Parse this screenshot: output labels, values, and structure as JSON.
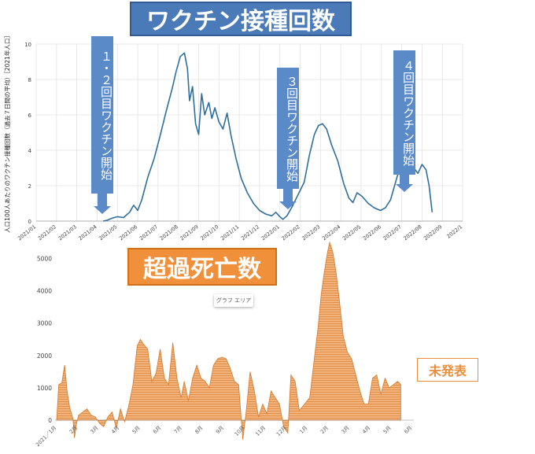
{
  "titles": {
    "vaccination": "ワクチン接種回数",
    "excess_deaths": "超過死亡数"
  },
  "callouts": {
    "dose12": "１・２回目ワクチン開始",
    "dose3": "３回目ワクチン開始",
    "dose4": "４回目ワクチン開始"
  },
  "not_published": "未発表",
  "chart_area_tag": "グラフ エリア",
  "colors": {
    "vaccine_line": "#2e6f9e",
    "excess_fill": "#f3b27a",
    "excess_stroke": "#d37a2e",
    "arrow": "#5b8ac8",
    "title_blue": "#4a7ab8",
    "title_orange": "#f0903a"
  },
  "chart_data": [
    {
      "type": "line",
      "ylabel": "人口100人あたりのワクチン接種回数（過去７日間の平均）［2021年人口］",
      "ylim": [
        0,
        10
      ],
      "yticks": [
        "0",
        "2",
        "4",
        "6",
        "8",
        "10"
      ],
      "xticks": [
        "2021/01",
        "2021/02",
        "2021/03",
        "2021/04",
        "2021/05",
        "2021/06",
        "2021/07",
        "2021/08",
        "2021/09",
        "2021/10",
        "2021/11",
        "2021/12",
        "2022/01",
        "2022/02",
        "2022/03",
        "2022/04",
        "2022/05",
        "2022/06",
        "2022/07",
        "2022/08",
        "2022/09",
        "2022/1"
      ],
      "grid": true,
      "series": [
        {
          "values": [
            [
              3.3,
              0
            ],
            [
              3.5,
              0.05
            ],
            [
              3.7,
              0.15
            ],
            [
              4.0,
              0.25
            ],
            [
              4.3,
              0.2
            ],
            [
              4.6,
              0.5
            ],
            [
              4.8,
              0.9
            ],
            [
              5.0,
              0.6
            ],
            [
              5.2,
              1.2
            ],
            [
              5.5,
              2.5
            ],
            [
              5.8,
              3.5
            ],
            [
              6.1,
              4.8
            ],
            [
              6.4,
              6.2
            ],
            [
              6.7,
              7.5
            ],
            [
              6.9,
              8.5
            ],
            [
              7.1,
              9.3
            ],
            [
              7.3,
              9.5
            ],
            [
              7.45,
              8.6
            ],
            [
              7.55,
              6.8
            ],
            [
              7.7,
              7.6
            ],
            [
              7.85,
              5.5
            ],
            [
              8.0,
              4.9
            ],
            [
              8.15,
              7.2
            ],
            [
              8.3,
              6.0
            ],
            [
              8.5,
              6.7
            ],
            [
              8.65,
              5.8
            ],
            [
              8.8,
              6.4
            ],
            [
              9.0,
              5.6
            ],
            [
              9.2,
              5.2
            ],
            [
              9.4,
              6.1
            ],
            [
              9.6,
              4.8
            ],
            [
              9.85,
              3.5
            ],
            [
              10.1,
              2.4
            ],
            [
              10.4,
              1.6
            ],
            [
              10.7,
              1.0
            ],
            [
              11.0,
              0.6
            ],
            [
              11.3,
              0.4
            ],
            [
              11.6,
              0.3
            ],
            [
              11.8,
              0.5
            ],
            [
              12.0,
              0.25
            ],
            [
              12.15,
              0.1
            ],
            [
              12.35,
              0.3
            ],
            [
              12.6,
              0.8
            ],
            [
              12.9,
              1.5
            ],
            [
              13.2,
              2.2
            ],
            [
              13.45,
              3.7
            ],
            [
              13.7,
              4.9
            ],
            [
              13.9,
              5.4
            ],
            [
              14.1,
              5.5
            ],
            [
              14.3,
              5.2
            ],
            [
              14.55,
              4.3
            ],
            [
              14.85,
              3.4
            ],
            [
              15.15,
              2.1
            ],
            [
              15.4,
              1.3
            ],
            [
              15.6,
              1.05
            ],
            [
              15.8,
              1.6
            ],
            [
              16.05,
              1.4
            ],
            [
              16.35,
              1.0
            ],
            [
              16.65,
              0.75
            ],
            [
              16.95,
              0.6
            ],
            [
              17.2,
              0.75
            ],
            [
              17.45,
              1.2
            ],
            [
              17.7,
              2.2
            ],
            [
              17.9,
              3.0
            ],
            [
              18.1,
              3.5
            ],
            [
              18.3,
              3.75
            ],
            [
              18.5,
              3.7
            ],
            [
              18.6,
              3.0
            ],
            [
              18.8,
              2.7
            ],
            [
              19.0,
              3.2
            ],
            [
              19.2,
              2.9
            ],
            [
              19.35,
              2.0
            ],
            [
              19.5,
              0.5
            ]
          ]
        }
      ]
    },
    {
      "type": "area",
      "ylim": [
        0,
        5500
      ],
      "yticks": [
        "0",
        "1000",
        "2000",
        "3000",
        "4000",
        "5000"
      ],
      "xticks": [
        "2021／1月",
        "2月",
        "3月",
        "4月",
        "5月",
        "6月",
        "7月",
        "8月",
        "9月",
        "10月",
        "11月",
        "12月",
        "1月",
        "2月",
        "3月",
        "4月",
        "5月",
        "6月"
      ],
      "series": [
        {
          "values": [
            [
              0,
              0
            ],
            [
              0.1,
              1100
            ],
            [
              0.25,
              1150
            ],
            [
              0.38,
              1700
            ],
            [
              0.5,
              900
            ],
            [
              0.62,
              400
            ],
            [
              0.78,
              50
            ],
            [
              0.85,
              -550
            ],
            [
              0.95,
              -100
            ],
            [
              1.05,
              150
            ],
            [
              1.25,
              250
            ],
            [
              1.45,
              350
            ],
            [
              1.65,
              150
            ],
            [
              1.85,
              100
            ],
            [
              2.05,
              -100
            ],
            [
              2.25,
              -200
            ],
            [
              2.45,
              100
            ],
            [
              2.65,
              250
            ],
            [
              2.85,
              -250
            ],
            [
              3.05,
              350
            ],
            [
              3.25,
              -50
            ],
            [
              3.45,
              450
            ],
            [
              3.65,
              1100
            ],
            [
              3.85,
              2300
            ],
            [
              4.0,
              2500
            ],
            [
              4.15,
              2350
            ],
            [
              4.35,
              2200
            ],
            [
              4.55,
              1200
            ],
            [
              4.75,
              1450
            ],
            [
              4.95,
              2200
            ],
            [
              5.15,
              1300
            ],
            [
              5.35,
              1100
            ],
            [
              5.55,
              2400
            ],
            [
              5.75,
              1300
            ],
            [
              5.95,
              700
            ],
            [
              6.1,
              1200
            ],
            [
              6.3,
              600
            ],
            [
              6.5,
              1300
            ],
            [
              6.7,
              1700
            ],
            [
              6.9,
              1300
            ],
            [
              7.1,
              1200
            ],
            [
              7.3,
              1000
            ],
            [
              7.5,
              1700
            ],
            [
              7.7,
              1900
            ],
            [
              7.9,
              1950
            ],
            [
              8.1,
              1900
            ],
            [
              8.3,
              1600
            ],
            [
              8.5,
              1200
            ],
            [
              8.7,
              1100
            ],
            [
              8.9,
              -600
            ],
            [
              9.05,
              200
            ],
            [
              9.25,
              1500
            ],
            [
              9.45,
              900
            ],
            [
              9.65,
              100
            ],
            [
              9.85,
              500
            ],
            [
              10.05,
              200
            ],
            [
              10.25,
              900
            ],
            [
              10.45,
              700
            ],
            [
              10.65,
              500
            ],
            [
              10.85,
              -200
            ],
            [
              11.05,
              -400
            ],
            [
              11.2,
              1400
            ],
            [
              11.4,
              1200
            ],
            [
              11.6,
              300
            ],
            [
              11.85,
              500
            ],
            [
              12.1,
              700
            ],
            [
              12.3,
              1800
            ],
            [
              12.5,
              2900
            ],
            [
              12.65,
              3900
            ],
            [
              12.8,
              4600
            ],
            [
              12.95,
              5200
            ],
            [
              13.05,
              5500
            ],
            [
              13.2,
              5200
            ],
            [
              13.35,
              4600
            ],
            [
              13.5,
              3800
            ],
            [
              13.7,
              2600
            ],
            [
              13.9,
              2100
            ],
            [
              14.1,
              1900
            ],
            [
              14.3,
              1400
            ],
            [
              14.5,
              900
            ],
            [
              14.7,
              500
            ],
            [
              14.9,
              500
            ],
            [
              15.1,
              1300
            ],
            [
              15.3,
              1400
            ],
            [
              15.5,
              800
            ],
            [
              15.7,
              1300
            ],
            [
              15.9,
              1000
            ],
            [
              16.1,
              1100
            ],
            [
              16.3,
              1200
            ],
            [
              16.45,
              1100
            ]
          ]
        }
      ]
    }
  ]
}
